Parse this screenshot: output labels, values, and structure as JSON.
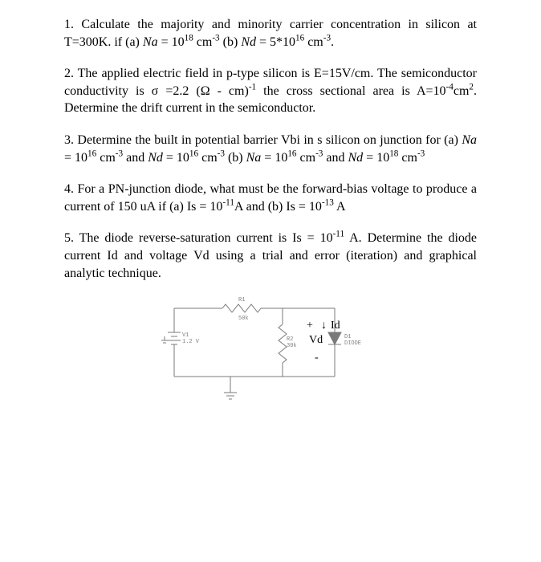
{
  "problems": {
    "p1": {
      "num": "1.",
      "text_html": "Calculate the majority and minority carrier concentration in silicon at T=300K. if (a) <span class='ital'>Na</span> = 10<sup>18</sup> cm<sup>-3</sup>  (b) <span class='ital'>Nd</span> = 5*10<sup>16</sup> cm<sup>-3</sup>."
    },
    "p2": {
      "num": "2.",
      "text_html": "The applied electric field in p-type silicon is E=15V/cm. The semiconductor conductivity is &sigma; =2.2 (&Omega; - cm)<sup>-1</sup> the cross sectional area is A=10<sup>-4</sup>cm<sup>2</sup>. Determine the drift current in the semiconductor."
    },
    "p3": {
      "num": "3.",
      "text_html": "Determine the built in potential barrier Vbi in s silicon on junction for (a) <span class='ital'>Na</span> = 10<sup>16</sup> cm<sup>-3</sup> and <span class='ital'>Nd</span> = 10<sup>16</sup> cm<sup>-3</sup>  (b) <span class='ital'>Na</span> = 10<sup>16</sup> cm<sup>-3</sup> and <span class='ital'>Nd</span> = 10<sup>18</sup> cm<sup>-3</sup>"
    },
    "p4": {
      "num": "4.",
      "text_html": "For a PN-junction diode, what must be the forward-bias voltage to produce a current of 150 uA if (a) Is = 10<sup>-11</sup>A  and (b) Is = 10<sup>-13</sup> A"
    },
    "p5": {
      "num": "5.",
      "text_html": "The diode reverse-saturation current is Is = 10<sup>-11</sup> A. Determine the diode current Id and voltage Vd using a trial and error (iteration) and graphical analytic technique."
    }
  },
  "circuit": {
    "r1": {
      "name": "R1",
      "value": "50k"
    },
    "r2": {
      "name": "R2",
      "value": "30k"
    },
    "v1": {
      "name": "V1",
      "value": "1.2 V"
    },
    "d1": {
      "name": "D1",
      "value": "DIODE"
    },
    "anno_plus": "+",
    "anno_id": "Id",
    "anno_vd": "Vd",
    "anno_minus": "-",
    "anno_arrow": "↓",
    "stroke_color": "#7a7a7a",
    "label_color": "#808080",
    "anno_color": "#000000"
  }
}
